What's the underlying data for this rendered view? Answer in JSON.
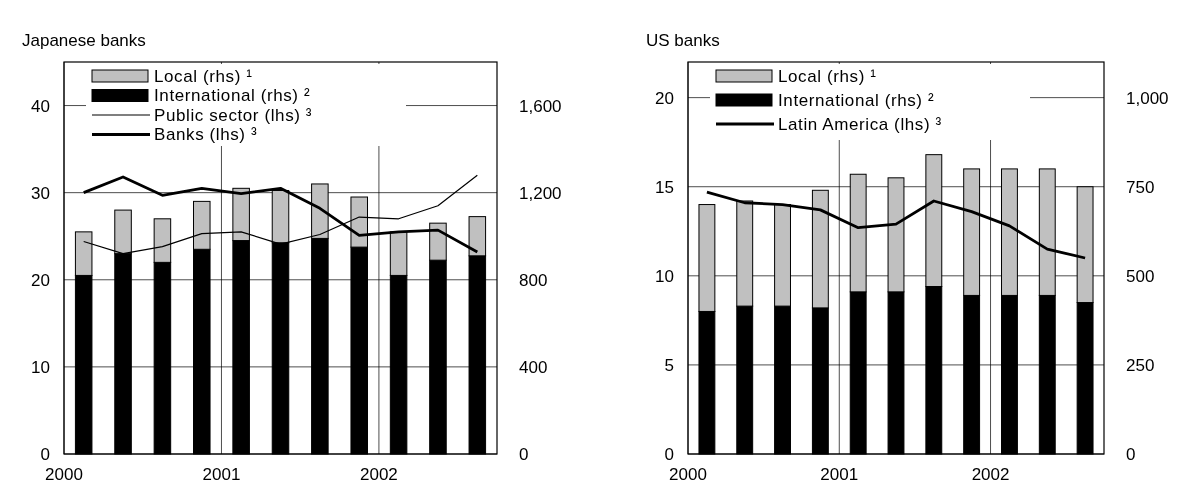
{
  "chart_data": [
    {
      "type": "bar",
      "title": "Japanese banks",
      "x": [
        2000.125,
        2000.375,
        2000.625,
        2000.875,
        2001.125,
        2001.375,
        2001.625,
        2001.875,
        2002.125,
        2002.375,
        2002.625
      ],
      "xlim": [
        2000,
        2002.75
      ],
      "xticks": [
        2000,
        2001,
        2002
      ],
      "ylim": [
        0,
        45
      ],
      "yticks": [
        0,
        10,
        20,
        30,
        40
      ],
      "y2lim": [
        0,
        1800
      ],
      "y2ticks": [
        0,
        400,
        800,
        {
          "value": 1200,
          "label": "1,200"
        },
        {
          "value": 1600,
          "label": "1,600"
        }
      ],
      "stacked": true,
      "grid": true,
      "legend": "top left",
      "series": [
        {
          "name": "International (rhs) ²",
          "axis": "y2",
          "color": "#000000",
          "values": [
            820,
            920,
            880,
            940,
            980,
            970,
            990,
            950,
            820,
            890,
            910
          ]
        },
        {
          "name": "Local (rhs) ¹",
          "axis": "y2",
          "color": "#c0c0c0",
          "values": [
            200,
            200,
            200,
            220,
            240,
            240,
            250,
            230,
            200,
            170,
            180
          ]
        },
        {
          "name": "Public sector (lhs) ³",
          "type": "line",
          "axis": "y",
          "color": "#000000",
          "values": [
            24.4,
            23.0,
            23.8,
            25.3,
            25.5,
            24.1,
            25.2,
            27.2,
            27.0,
            28.5,
            32.0
          ]
        },
        {
          "name": "Banks (lhs) ³",
          "type": "line",
          "axis": "y",
          "color": "#000000",
          "values": [
            30.0,
            31.8,
            29.7,
            30.5,
            29.9,
            30.5,
            28.2,
            25.1,
            25.5,
            25.7,
            23.2
          ]
        }
      ]
    },
    {
      "type": "bar",
      "title": "US banks",
      "x": [
        2000.125,
        2000.375,
        2000.625,
        2000.875,
        2001.125,
        2001.375,
        2001.625,
        2001.875,
        2002.125,
        2002.375,
        2002.625
      ],
      "xlim": [
        2000,
        2002.75
      ],
      "xticks": [
        2000,
        2001,
        2002
      ],
      "ylim": [
        0,
        22
      ],
      "yticks": [
        0,
        5,
        10,
        15,
        20
      ],
      "y2lim": [
        0,
        1100
      ],
      "y2ticks": [
        0,
        250,
        500,
        750,
        {
          "value": 1000,
          "label": "1,000"
        }
      ],
      "stacked": true,
      "grid": true,
      "legend": "top left",
      "series": [
        {
          "name": "International (rhs) ²",
          "axis": "y2",
          "color": "#000000",
          "values": [
            400,
            415,
            415,
            410,
            455,
            455,
            470,
            445,
            445,
            445,
            425
          ]
        },
        {
          "name": "Local (rhs) ¹",
          "axis": "y2",
          "color": "#c0c0c0",
          "values": [
            300,
            295,
            285,
            330,
            330,
            320,
            370,
            355,
            355,
            355,
            325
          ]
        },
        {
          "name": "Latin America (lhs) ³",
          "type": "line",
          "axis": "y",
          "color": "#000000",
          "values": [
            14.7,
            14.1,
            14.0,
            13.7,
            12.7,
            12.9,
            14.2,
            13.6,
            12.8,
            11.5,
            11.0
          ]
        }
      ]
    }
  ]
}
